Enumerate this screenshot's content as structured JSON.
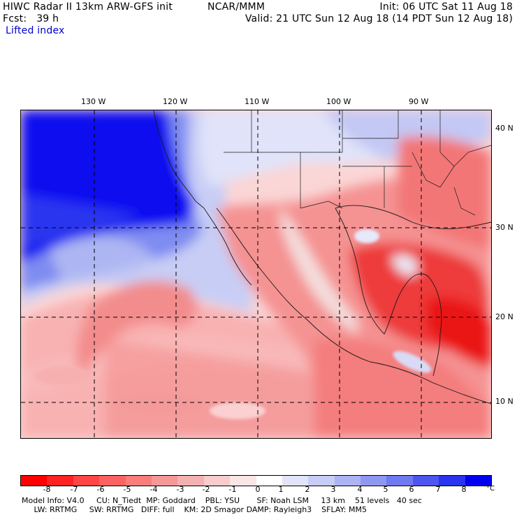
{
  "header": {
    "title": "HIWC Radar II 13km ARW-GFS init",
    "source": "NCAR/MMM",
    "init": "Init: 06 UTC Sat 11 Aug 18",
    "forecast": "Fcst:   39 h",
    "valid": "Valid: 21 UTC Sun 12 Aug 18 (14 PDT Sun 12 Aug 18)",
    "field": "Lifted index"
  },
  "map": {
    "lon_labels": [
      "130 W",
      "120 W",
      "110 W",
      "100 W",
      "90 W"
    ],
    "lat_labels": [
      "40 N",
      "30 N",
      "20 N",
      "10 N"
    ],
    "colors": {
      "deep_blue": "#0000f0",
      "mid_blue": "#8a96f2",
      "light_blue": "#dcdff8",
      "neutral": "#ffffff",
      "light_red": "#f8c2c2",
      "mid_red": "#f07070",
      "deep_red": "#ee1a1a"
    }
  },
  "colorbar": {
    "ticks": [
      "-8",
      "-7",
      "-6",
      "-5",
      "-4",
      "-3",
      "-2",
      "-1",
      "0",
      "1",
      "2",
      "3",
      "4",
      "5",
      "6",
      "7",
      "8"
    ],
    "unit": "°C",
    "colors": [
      "#ff0000",
      "#ff2222",
      "#ff4545",
      "#fd6262",
      "#f97d7d",
      "#f69898",
      "#f4b1b1",
      "#f6cccc",
      "#fbe6e6",
      "#ffffff",
      "#e2e4fa",
      "#c8cdf6",
      "#adb4f4",
      "#8f98f1",
      "#6f79f0",
      "#4d57f0",
      "#2a34f0",
      "#0000f0"
    ]
  },
  "footer": {
    "line1": "Model Info: V4.0     CU: N_Tiedt  MP: Goddard    PBL: YSU       SF: Noah LSM     13 km    51 levels   40 sec",
    "line2": "     LW: RRTMG     SW: RRTMG   DIFF: full    KM: 2D Smagor DAMP: Rayleigh3    SFLAY: MM5"
  }
}
